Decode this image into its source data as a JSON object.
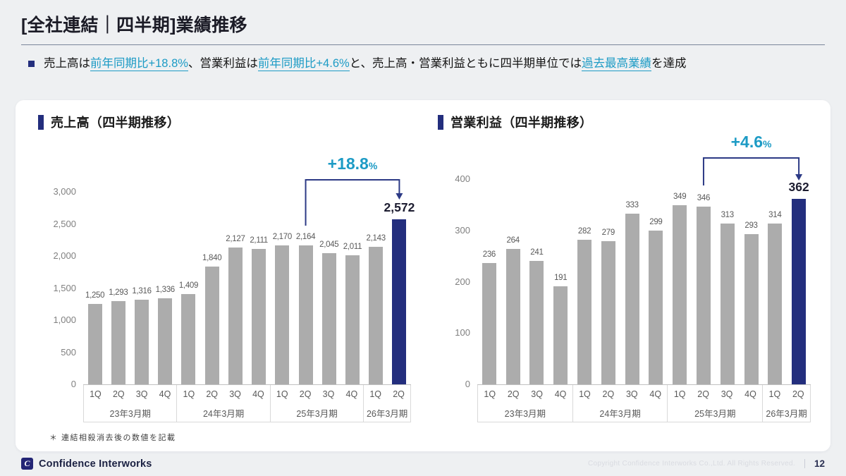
{
  "header": {
    "title": "[全社連結｜四半期]業績推移",
    "bullet": {
      "segments": [
        {
          "text": "売上高は",
          "style": "plain"
        },
        {
          "text": "前年同期比+18.8%",
          "style": "accent"
        },
        {
          "text": "、営業利益は",
          "style": "plain"
        },
        {
          "text": "前年同期比+4.6%",
          "style": "accent"
        },
        {
          "text": "と、売上高・営業利益ともに四半期単位では",
          "style": "plain"
        },
        {
          "text": "過去最高業績",
          "style": "accent"
        },
        {
          "text": "を達成",
          "style": "plain"
        }
      ]
    }
  },
  "chart_data": [
    {
      "type": "bar",
      "title": "売上高（四半期推移）",
      "xlabel": "",
      "ylabel": "",
      "ylim": [
        0,
        3000
      ],
      "yticks": [
        "3,000",
        "2,500",
        "2,000",
        "1,500",
        "1,000",
        "500",
        "0"
      ],
      "grid": false,
      "legend": "none",
      "categories": [
        "1Q",
        "2Q",
        "3Q",
        "4Q",
        "1Q",
        "2Q",
        "3Q",
        "4Q",
        "1Q",
        "2Q",
        "3Q",
        "4Q",
        "1Q",
        "2Q"
      ],
      "groups": [
        {
          "label": "23年3月期",
          "count": 4
        },
        {
          "label": "24年3月期",
          "count": 4
        },
        {
          "label": "25年3月期",
          "count": 4
        },
        {
          "label": "26年3月期",
          "count": 2
        }
      ],
      "values": [
        1250,
        1293,
        1316,
        1336,
        1409,
        1840,
        2127,
        2111,
        2170,
        2164,
        2045,
        2011,
        2143,
        2572
      ],
      "labels": [
        "1,250",
        "1,293",
        "1,316",
        "1,336",
        "1,409",
        "1,840",
        "2,127",
        "2,111",
        "2,170",
        "2,164",
        "2,045",
        "2,011",
        "2,143",
        "2,572"
      ],
      "highlight_index": 13,
      "annotation": {
        "label": "+18.8",
        "suffix": "%",
        "from_index": 9,
        "to_index": 13
      },
      "bar_color": "#acacac",
      "highlight_color": "#232e7d"
    },
    {
      "type": "bar",
      "title": "営業利益（四半期推移）",
      "xlabel": "",
      "ylabel": "",
      "ylim": [
        0,
        400
      ],
      "yticks": [
        "400",
        "300",
        "200",
        "100",
        "0"
      ],
      "grid": false,
      "legend": "none",
      "categories": [
        "1Q",
        "2Q",
        "3Q",
        "4Q",
        "1Q",
        "2Q",
        "3Q",
        "4Q",
        "1Q",
        "2Q",
        "3Q",
        "4Q",
        "1Q",
        "2Q"
      ],
      "groups": [
        {
          "label": "23年3月期",
          "count": 4
        },
        {
          "label": "24年3月期",
          "count": 4
        },
        {
          "label": "25年3月期",
          "count": 4
        },
        {
          "label": "26年3月期",
          "count": 2
        }
      ],
      "values": [
        236,
        264,
        241,
        191,
        282,
        279,
        333,
        299,
        349,
        346,
        313,
        293,
        314,
        362
      ],
      "labels": [
        "236",
        "264",
        "241",
        "191",
        "282",
        "279",
        "333",
        "299",
        "349",
        "346",
        "313",
        "293",
        "314",
        "362"
      ],
      "highlight_index": 13,
      "annotation": {
        "label": "+4.6",
        "suffix": "%",
        "from_index": 9,
        "to_index": 13
      },
      "bar_color": "#acacac",
      "highlight_color": "#232e7d"
    }
  ],
  "footnote": "＊ 連結相殺消去後の数値を記載",
  "footer": {
    "logo_icon": "confidence-interworks-monogram",
    "logo_glyph": "C",
    "brand": "Confidence Interworks",
    "copyright": "Copyright Confidence Interworks Co.,Ltd. All Rights Reserved.",
    "page_number": "12"
  },
  "colors": {
    "accent_teal": "#1d9bc5",
    "navy": "#232e7d",
    "arrow_navy": "#2c3a85",
    "bar_gray": "#acacac"
  }
}
